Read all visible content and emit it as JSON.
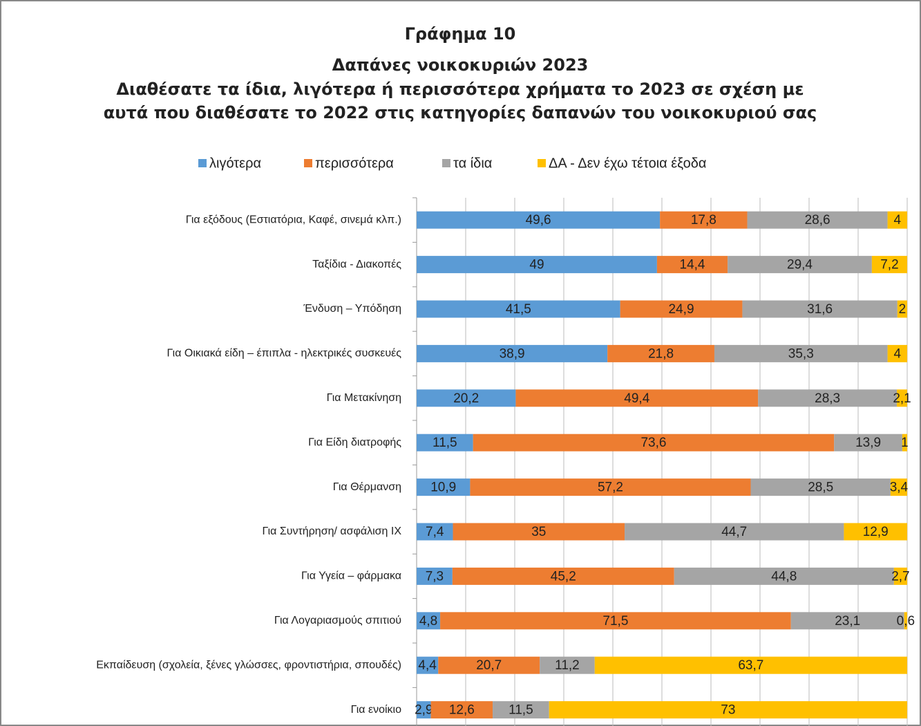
{
  "chart_data": {
    "type": "stacked_barh",
    "title": [
      "Γράφημα 10",
      "Δαπάνες νοικοκυριών 2023",
      "Διαθέσατε τα ίδια, λιγότερα ή περισσότερα χρήματα το 2023 σε σχέση με",
      "αυτά που διαθέσατε το 2022 στις κατηγορίες δαπανών του νοικοκυριού σας"
    ],
    "categories": [
      "Για εξόδους (Εστιατόρια, Καφέ, σινεμά κλπ.)",
      "Ταξίδια - Διακοπές",
      "Ένδυση – Υπόδηση",
      "Για Οικιακά είδη – έπιπλα - ηλεκτρικές συσκευές",
      "Για Μετακίνηση",
      "Για Είδη διατροφής",
      "Για Θέρμανση",
      "Για Συντήρηση/ ασφάλιση ΙΧ",
      "Για Υγεία – φάρμακα",
      "Για Λογαριασμούς σπιτιού",
      "Εκπαίδευση (σχολεία, ξένες γλώσσες, φροντιστήρια, σπουδές)",
      "Για ενοίκιο"
    ],
    "series": [
      {
        "name": "λιγότερα",
        "color": "#5b9bd5",
        "values": [
          49.6,
          49,
          41.5,
          38.9,
          20.2,
          11.5,
          10.9,
          7.4,
          7.3,
          4.8,
          4.4,
          2.9
        ],
        "value_labels": [
          "49,6",
          "49",
          "41,5",
          "38,9",
          "20,2",
          "11,5",
          "10,9",
          "7,4",
          "7,3",
          "4,8",
          "4,4",
          "2,9"
        ]
      },
      {
        "name": "περισσότερα",
        "color": "#ed7d31",
        "values": [
          17.8,
          14.4,
          24.9,
          21.8,
          49.4,
          73.6,
          57.2,
          35,
          45.2,
          71.5,
          20.7,
          12.6
        ],
        "value_labels": [
          "17,8",
          "14,4",
          "24,9",
          "21,8",
          "49,4",
          "73,6",
          "57,2",
          "35",
          "45,2",
          "71,5",
          "20,7",
          "12,6"
        ]
      },
      {
        "name": "τα ίδια",
        "color": "#a5a5a5",
        "values": [
          28.6,
          29.4,
          31.6,
          35.3,
          28.3,
          13.9,
          28.5,
          44.7,
          44.8,
          23.1,
          11.2,
          11.5
        ],
        "value_labels": [
          "28,6",
          "29,4",
          "31,6",
          "35,3",
          "28,3",
          "13,9",
          "28,5",
          "44,7",
          "44,8",
          "23,1",
          "11,2",
          "11,5"
        ]
      },
      {
        "name": "ΔΑ - Δεν έχω τέτοια έξοδα",
        "color": "#ffc000",
        "values": [
          4,
          7.2,
          2,
          4,
          2.1,
          1,
          3.4,
          12.9,
          2.7,
          0.6,
          63.7,
          73
        ],
        "value_labels": [
          "4",
          "7,2",
          "2",
          "4",
          "2,1",
          "1",
          "3,4",
          "12,9",
          "2,7",
          "0,6",
          "63,7",
          "73"
        ]
      }
    ],
    "xlim": [
      0,
      100
    ],
    "xticks": [
      0,
      10,
      20,
      30,
      40,
      50,
      60,
      70,
      80,
      90,
      100
    ],
    "grid": true,
    "legend": "top"
  }
}
